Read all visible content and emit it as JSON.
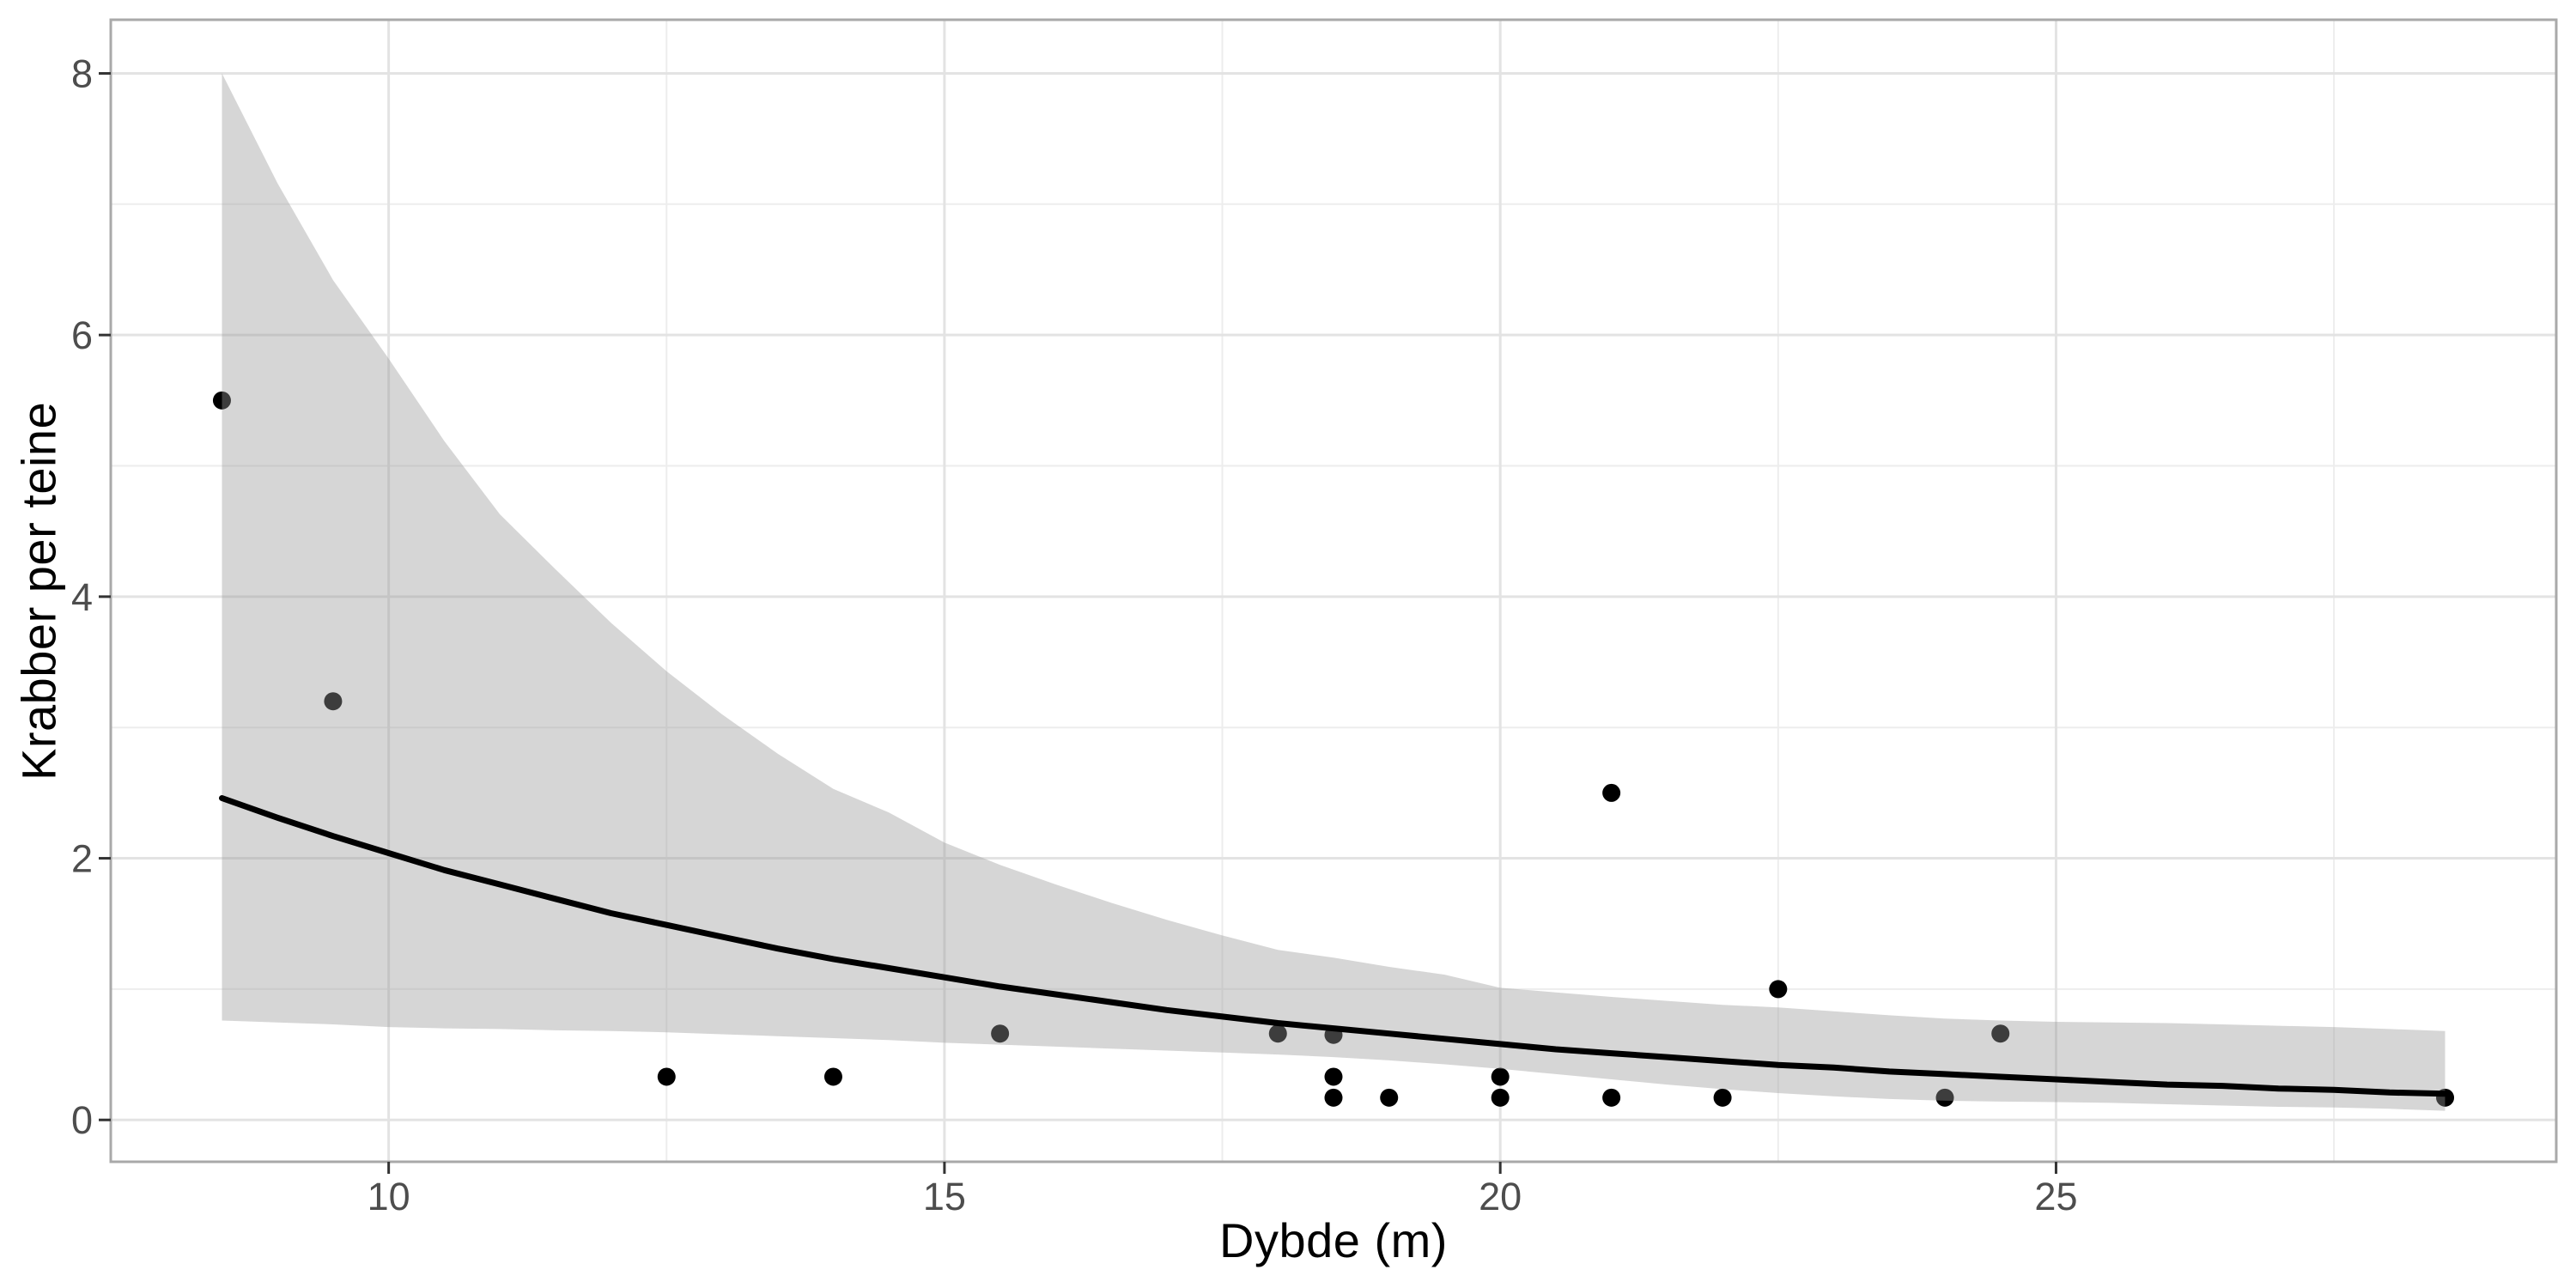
{
  "chart_data": {
    "type": "scatter",
    "title": "",
    "xlabel": "Dybde (m)",
    "ylabel": "Krabber per teine",
    "xlim": [
      7.5,
      29.5
    ],
    "ylim": [
      -0.32,
      8.41
    ],
    "x_ticks": [
      10,
      15,
      20,
      25
    ],
    "y_ticks": [
      0,
      2,
      4,
      6,
      8
    ],
    "x_minor_gridlines": [
      12.5,
      17.5,
      22.5,
      27.5
    ],
    "y_minor_gridlines": [
      1,
      3,
      5,
      7
    ],
    "grid": true,
    "legend": "none",
    "points": [
      [
        8.5,
        5.5
      ],
      [
        9.5,
        3.2
      ],
      [
        12.5,
        0.33
      ],
      [
        14,
        0.33
      ],
      [
        15.5,
        0.66
      ],
      [
        18,
        0.66
      ],
      [
        18.5,
        0.65
      ],
      [
        18.5,
        0.33
      ],
      [
        18.5,
        0.17
      ],
      [
        19,
        0.17
      ],
      [
        20,
        0.33
      ],
      [
        20,
        0.17
      ],
      [
        21,
        2.5
      ],
      [
        21,
        0.17
      ],
      [
        22,
        0.17
      ],
      [
        22.5,
        1.0
      ],
      [
        24,
        0.17
      ],
      [
        24.5,
        0.66
      ],
      [
        28.5,
        0.17
      ]
    ],
    "smooth_fit": {
      "x": [
        8.5,
        9,
        9.5,
        10,
        10.5,
        11,
        11.5,
        12,
        12.5,
        13,
        13.5,
        14,
        14.5,
        15,
        15.5,
        16,
        16.5,
        17,
        17.5,
        18,
        18.5,
        19,
        19.5,
        20,
        20.5,
        21,
        21.5,
        22,
        22.5,
        23,
        23.5,
        24,
        24.5,
        25,
        25.5,
        26,
        26.5,
        27,
        27.5,
        28,
        28.5
      ],
      "line": [
        2.46,
        2.31,
        2.17,
        2.04,
        1.91,
        1.8,
        1.69,
        1.58,
        1.49,
        1.4,
        1.31,
        1.23,
        1.16,
        1.09,
        1.02,
        0.96,
        0.9,
        0.84,
        0.79,
        0.74,
        0.7,
        0.66,
        0.62,
        0.58,
        0.54,
        0.51,
        0.48,
        0.45,
        0.42,
        0.4,
        0.37,
        0.35,
        0.33,
        0.31,
        0.29,
        0.27,
        0.26,
        0.24,
        0.23,
        0.21,
        0.2
      ],
      "ci_upper": [
        8.0,
        7.16,
        6.42,
        5.82,
        5.19,
        4.63,
        4.21,
        3.8,
        3.43,
        3.1,
        2.8,
        2.53,
        2.35,
        2.12,
        1.95,
        1.8,
        1.66,
        1.53,
        1.41,
        1.3,
        1.24,
        1.17,
        1.11,
        1.01,
        0.975,
        0.94,
        0.91,
        0.88,
        0.86,
        0.83,
        0.8,
        0.775,
        0.76,
        0.75,
        0.745,
        0.74,
        0.73,
        0.72,
        0.71,
        0.695,
        0.68
      ],
      "ci_lower": [
        0.76,
        0.745,
        0.73,
        0.71,
        0.7,
        0.695,
        0.685,
        0.68,
        0.67,
        0.655,
        0.64,
        0.625,
        0.61,
        0.59,
        0.575,
        0.56,
        0.545,
        0.53,
        0.515,
        0.5,
        0.48,
        0.455,
        0.425,
        0.39,
        0.35,
        0.31,
        0.27,
        0.235,
        0.205,
        0.18,
        0.16,
        0.147,
        0.14,
        0.136,
        0.13,
        0.12,
        0.11,
        0.1,
        0.095,
        0.085,
        0.07
      ]
    },
    "colors": {
      "point": "#000000",
      "smooth_line": "#000000",
      "ci_fill_base": "#999999",
      "ci_fill_alpha": 0.4,
      "gridline_major": "#E3E3E3",
      "gridline_minor": "#EDEDED",
      "panel_border": "#A9A9A9",
      "tick_mark": "#333333",
      "tick_label": "#4D4D4D",
      "axis_title": "#000000",
      "background": "#FFFFFF"
    }
  }
}
